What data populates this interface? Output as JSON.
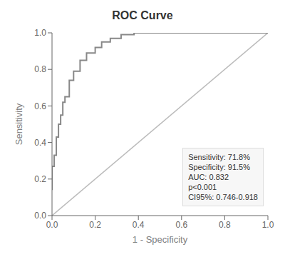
{
  "chart_data": {
    "type": "line",
    "title": "ROC Curve",
    "x_label": "1 - Specificity",
    "y_label": "Sensitivity",
    "xlim": [
      0.0,
      1.0
    ],
    "ylim": [
      0.0,
      1.0
    ],
    "xticks": [
      {
        "value": 0.0,
        "label": "0.0"
      },
      0.2,
      0.4,
      0.6,
      0.8,
      {
        "value": 1.0,
        "label": "1.0"
      }
    ],
    "yticks": [
      {
        "value": 0.0,
        "label": "0.0"
      },
      0.2,
      0.4,
      0.6,
      0.8,
      {
        "value": 1.0,
        "label": "1.0"
      }
    ],
    "grid": false,
    "annotations": [
      "Sensitivity: 71.8%\nSpecificity: 91.5%\nAUC: 0.832\np<0.001\nCI95%: 0.746-0.918"
    ],
    "series": [
      {
        "color": "#bbbbbb",
        "x": [
          0,
          1
        ],
        "values": [
          0,
          1
        ]
      },
      {
        "color": "#888888",
        "x": [
          0.0,
          0.0,
          0.01,
          0.01,
          0.02,
          0.02,
          0.03,
          0.03,
          0.04,
          0.04,
          0.05,
          0.05,
          0.06,
          0.06,
          0.08,
          0.08,
          0.1,
          0.1,
          0.13,
          0.13,
          0.16,
          0.16,
          0.2,
          0.2,
          0.23,
          0.23,
          0.27,
          0.27,
          0.32,
          0.32,
          0.38,
          0.38,
          0.42,
          0.42,
          1.0
        ],
        "values": [
          0.14,
          0.27,
          0.27,
          0.33,
          0.33,
          0.43,
          0.43,
          0.5,
          0.5,
          0.55,
          0.55,
          0.62,
          0.62,
          0.65,
          0.65,
          0.74,
          0.74,
          0.79,
          0.79,
          0.85,
          0.85,
          0.89,
          0.89,
          0.92,
          0.92,
          0.95,
          0.95,
          0.97,
          0.97,
          0.99,
          0.99,
          1.0,
          1.0,
          1.0,
          1.0
        ]
      }
    ]
  }
}
